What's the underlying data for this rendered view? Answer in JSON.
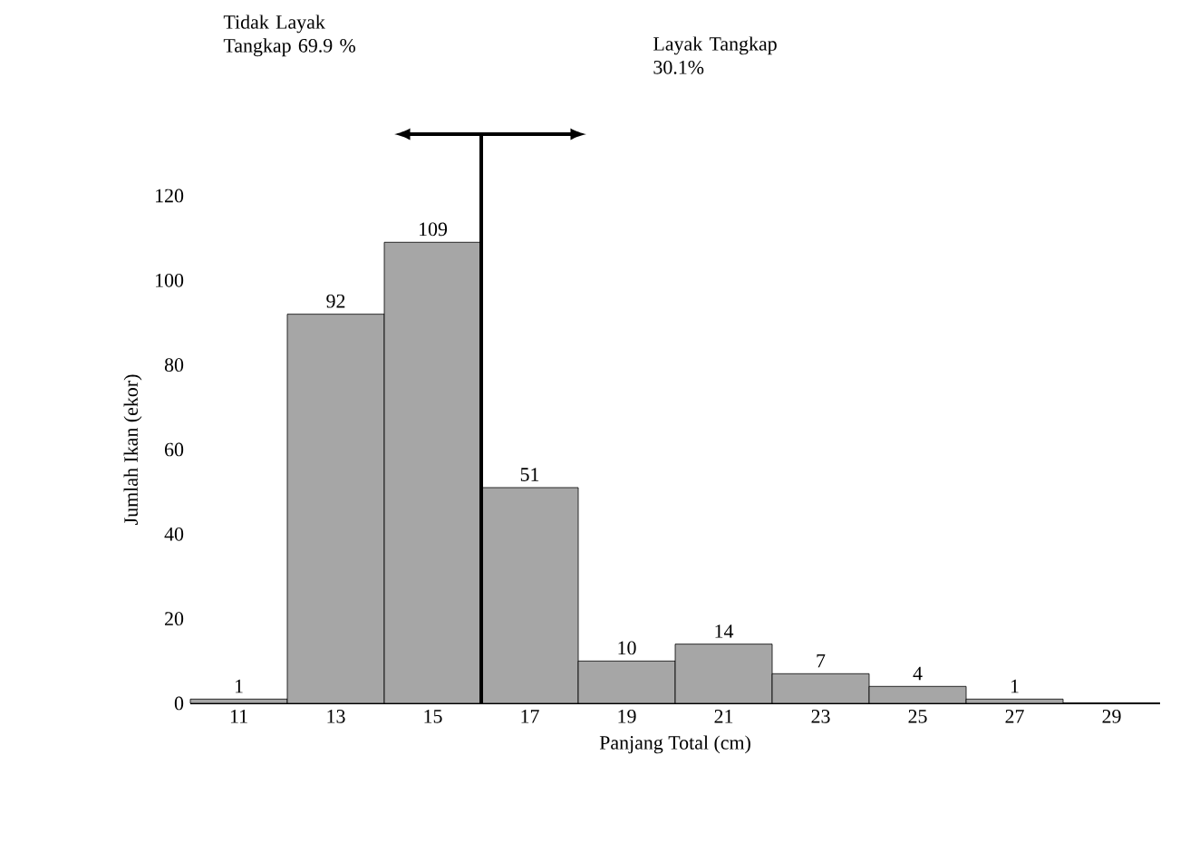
{
  "chart_data": {
    "type": "histogram",
    "xlabel": "Panjang Total (cm)",
    "ylabel": "Jumlah Ikan (ekor)",
    "bins": [
      10,
      12,
      14,
      16,
      18,
      20,
      22,
      24,
      26,
      28
    ],
    "values": [
      1,
      92,
      109,
      51,
      10,
      14,
      7,
      4,
      1
    ],
    "color": "#a6a6a6",
    "data_labels": true,
    "xlim": [
      10,
      30
    ],
    "xticks": [
      11,
      13,
      15,
      17,
      19,
      21,
      23,
      25,
      27,
      29
    ],
    "ylim": [
      0,
      120
    ],
    "yticks": [
      0,
      20,
      40,
      60,
      80,
      100,
      120
    ],
    "ref_lines": [
      {
        "axis": "x",
        "value": 16
      }
    ],
    "annotations": [
      "Tidak Layak Tangkap 69.9 %",
      "Layak Tangkap 30.1%"
    ]
  }
}
